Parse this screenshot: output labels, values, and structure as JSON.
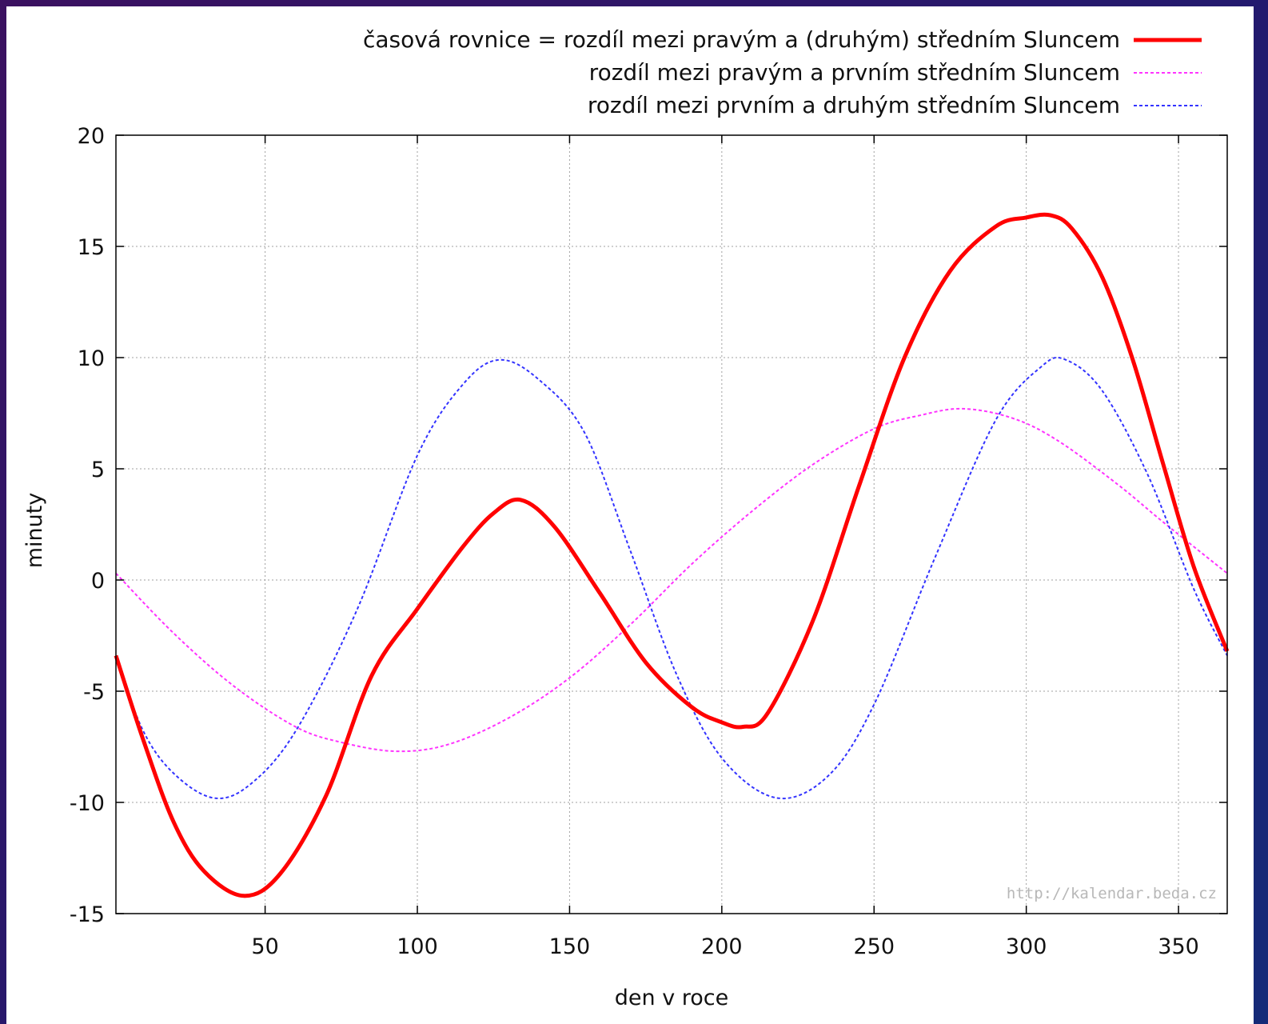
{
  "chart_data": {
    "type": "line",
    "xlabel": "den v roce",
    "ylabel": "minuty",
    "xlim": [
      1,
      366
    ],
    "ylim": [
      -15,
      20
    ],
    "xticks": [
      50,
      100,
      150,
      200,
      250,
      300,
      350
    ],
    "yticks": [
      -15,
      -10,
      -5,
      0,
      5,
      10,
      15,
      20
    ],
    "grid": true,
    "legend_position": "top-right",
    "watermark": "http://kalendar.beda.cz",
    "series": [
      {
        "name": "časová rovnice = rozdíl mezi pravým a (druhým) středním Sluncem",
        "color": "#ff0000",
        "style": "solid",
        "x": [
          1,
          10,
          20,
          30,
          43,
          55,
          70,
          85,
          100,
          115,
          125,
          134,
          145,
          160,
          175,
          190,
          200,
          207,
          215,
          230,
          245,
          260,
          275,
          290,
          300,
          308,
          315,
          325,
          335,
          345,
          355,
          366
        ],
        "y": [
          -3.4,
          -7.2,
          -10.9,
          -13.1,
          -14.2,
          -13.2,
          -9.7,
          -4.3,
          -1.3,
          1.5,
          3.0,
          3.6,
          2.4,
          -0.6,
          -3.7,
          -5.7,
          -6.4,
          -6.6,
          -6.0,
          -1.8,
          4.2,
          10.0,
          13.9,
          15.9,
          16.3,
          16.4,
          15.8,
          13.6,
          9.9,
          5.2,
          0.6,
          -3.2
        ]
      },
      {
        "name": "rozdíl mezi pravým a prvním středním Sluncem",
        "color": "#ff33ff",
        "style": "dotted",
        "x": [
          1,
          20,
          40,
          60,
          75,
          93,
          110,
          130,
          150,
          170,
          190,
          210,
          230,
          250,
          265,
          279,
          295,
          310,
          330,
          345,
          366
        ],
        "y": [
          0.3,
          -2.4,
          -4.8,
          -6.6,
          -7.3,
          -7.7,
          -7.4,
          -6.2,
          -4.4,
          -2.0,
          0.7,
          3.1,
          5.2,
          6.8,
          7.4,
          7.7,
          7.3,
          6.3,
          4.3,
          2.6,
          0.3
        ]
      },
      {
        "name": "rozdíl mezi prvním a druhým středním Sluncem",
        "color": "#3333ff",
        "style": "dotted",
        "x": [
          1,
          10,
          20,
          33,
          45,
          60,
          80,
          100,
          115,
          127,
          140,
          155,
          170,
          185,
          200,
          218,
          235,
          250,
          270,
          290,
          305,
          313,
          325,
          340,
          355,
          366
        ],
        "y": [
          -3.5,
          -6.8,
          -8.7,
          -9.8,
          -9.2,
          -6.8,
          -1.4,
          5.6,
          8.8,
          9.9,
          9.0,
          6.6,
          1.3,
          -4.2,
          -8.0,
          -9.8,
          -8.8,
          -5.6,
          1.0,
          7.2,
          9.6,
          9.9,
          8.5,
          4.7,
          -0.4,
          -3.4
        ]
      }
    ]
  }
}
